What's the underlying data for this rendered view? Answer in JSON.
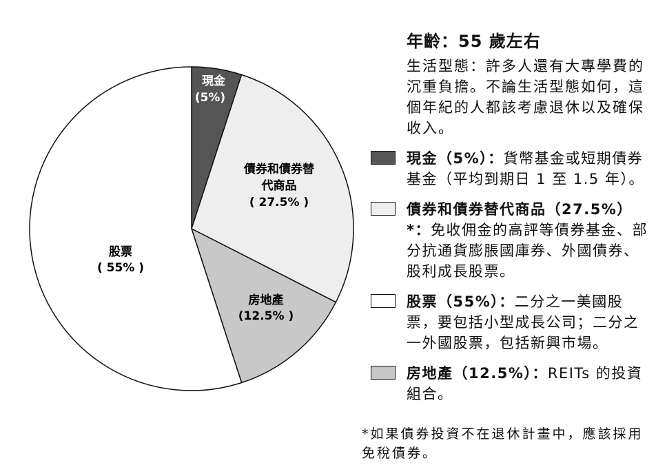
{
  "colors": {
    "cash": "#555555",
    "bonds": "#eeeeee",
    "stocks": "#ffffff",
    "real_estate": "#c8c8c8",
    "outline": "#111111"
  },
  "chart_data": {
    "type": "pie",
    "slices": [
      {
        "key": "cash",
        "label": "現金",
        "value_label": "(5%)",
        "value": 5,
        "color": "#555555"
      },
      {
        "key": "bonds",
        "label": "債券和債券替",
        "label2": "代商品",
        "value_label": "( 27.5% )",
        "value": 27.5,
        "color": "#eeeeee"
      },
      {
        "key": "real_estate",
        "label": "房地產",
        "value_label": "(12.5% )",
        "value": 12.5,
        "color": "#c8c8c8"
      },
      {
        "key": "stocks",
        "label": "股票",
        "value_label": "( 55% )",
        "value": 55,
        "color": "#ffffff"
      }
    ]
  },
  "panel": {
    "heading": "年齡：55 歲左右",
    "lifestyle": "生活型態：許多人還有大專學費的沉重負擔。不論生活型態如何，這個年紀的人都該考慮退休以及確保收入。"
  },
  "legend": [
    {
      "key": "cash",
      "name": "現金（5%）：",
      "desc": "貨幣基金或短期債券基金（平均到期日 1 至 1.5 年）。"
    },
    {
      "key": "bonds",
      "name": "債券和債券替代商品（27.5%）*：",
      "desc": "免收佣金的高評等債券基金、部分抗通貨膨脹國庫券、外國債券、股利成長股票。"
    },
    {
      "key": "stocks",
      "name": "股票（55%）：",
      "desc": "二分之一美國股票，要包括小型成長公司；二分之一外國股票，包括新興市場。"
    },
    {
      "key": "real_estate",
      "name": "房地產（12.5%）：",
      "desc": "REITs 的投資組合。"
    }
  ],
  "footnote": "*如果債券投資不在退休計畫中，應該採用免稅債券。"
}
